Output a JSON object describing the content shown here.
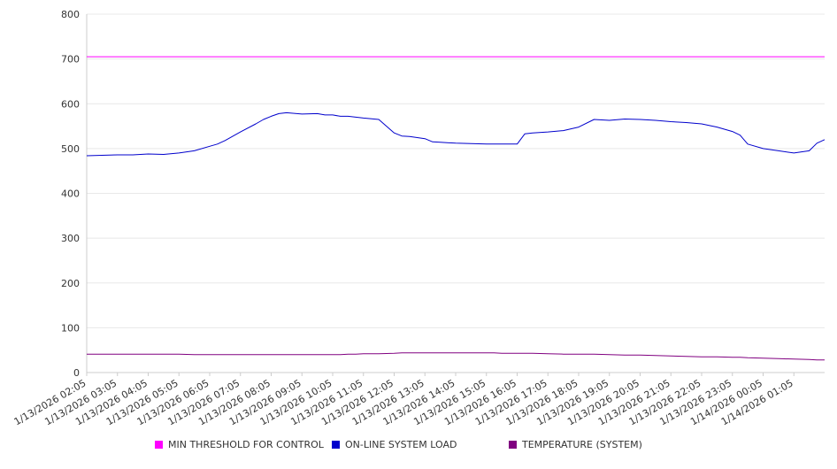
{
  "chart_data": {
    "type": "line",
    "title": "",
    "xlabel": "",
    "ylabel": "",
    "ylim": [
      0,
      800
    ],
    "yticks": [
      0,
      100,
      200,
      300,
      400,
      500,
      600,
      700,
      800
    ],
    "grid": true,
    "legend_position": "bottom",
    "x_tick_labels": [
      "1/13/2026 02:05",
      "1/13/2026 03:05",
      "1/13/2026 04:05",
      "1/13/2026 05:05",
      "1/13/2026 06:05",
      "1/13/2026 07:05",
      "1/13/2026 08:05",
      "1/13/2026 09:05",
      "1/13/2026 10:05",
      "1/13/2026 11:05",
      "1/13/2026 12:05",
      "1/13/2026 13:05",
      "1/13/2026 14:05",
      "1/13/2026 15:05",
      "1/13/2026 16:05",
      "1/13/2026 17:05",
      "1/13/2026 18:05",
      "1/13/2026 19:05",
      "1/13/2026 20:05",
      "1/13/2026 21:05",
      "1/13/2026 22:05",
      "1/13/2026 23:05",
      "1/14/2026 00:05",
      "1/14/2026 01:05"
    ],
    "x_hours": [
      0,
      1,
      1.5,
      2,
      2.5,
      3,
      3.5,
      4,
      4.25,
      4.5,
      5,
      5.5,
      5.75,
      6,
      6.25,
      6.5,
      7,
      7.5,
      7.75,
      8,
      8.25,
      8.5,
      8.75,
      9,
      9.5,
      10,
      10.25,
      10.5,
      11,
      11.25,
      11.5,
      12,
      12.5,
      13,
      13.25,
      13.5,
      14,
      14.25,
      14.5,
      15,
      15.5,
      16,
      16.5,
      17,
      17.5,
      18,
      18.5,
      19,
      19.5,
      20,
      20.5,
      21,
      21.25,
      21.5,
      22,
      22.5,
      23,
      23.5,
      23.75,
      24
    ],
    "series": [
      {
        "name": "MIN THRESHOLD FOR CONTROL",
        "color": "#ff00ff",
        "values": [
          705,
          705,
          705,
          705,
          705,
          705,
          705,
          705,
          705,
          705,
          705,
          705,
          705,
          705,
          705,
          705,
          705,
          705,
          705,
          705,
          705,
          705,
          705,
          705,
          705,
          705,
          705,
          705,
          705,
          705,
          705,
          705,
          705,
          705,
          705,
          705,
          705,
          705,
          705,
          705,
          705,
          705,
          705,
          705,
          705,
          705,
          705,
          705,
          705,
          705,
          705,
          705,
          705,
          705,
          705,
          705,
          705,
          705,
          705,
          705
        ]
      },
      {
        "name": "ON-LINE SYSTEM LOAD",
        "color": "#0000cc",
        "values": [
          484,
          486,
          486,
          488,
          487,
          490,
          495,
          505,
          510,
          518,
          537,
          555,
          565,
          572,
          578,
          580,
          577,
          578,
          575,
          575,
          572,
          572,
          570,
          568,
          565,
          535,
          528,
          527,
          522,
          515,
          514,
          512,
          511,
          510,
          510,
          510,
          510,
          533,
          535,
          537,
          540,
          548,
          565,
          563,
          566,
          565,
          563,
          560,
          558,
          555,
          548,
          538,
          530,
          510,
          500,
          495,
          490,
          495,
          512,
          520
        ]
      },
      {
        "name": "TEMPERATURE (SYSTEM)",
        "color": "#800080",
        "values": [
          41,
          41,
          41,
          41,
          41,
          41,
          40,
          40,
          40,
          40,
          40,
          40,
          40,
          40,
          40,
          40,
          40,
          40,
          40,
          40,
          40,
          41,
          41,
          42,
          42,
          43,
          44,
          44,
          44,
          44,
          44,
          44,
          44,
          44,
          44,
          43,
          43,
          43,
          43,
          42,
          41,
          41,
          41,
          40,
          39,
          39,
          38,
          37,
          36,
          35,
          35,
          34,
          34,
          33,
          32,
          31,
          30,
          29,
          28,
          28
        ]
      }
    ]
  },
  "legend": [
    {
      "label": "MIN THRESHOLD FOR CONTROL",
      "color": "#ff00ff"
    },
    {
      "label": "ON-LINE SYSTEM LOAD",
      "color": "#0000cc"
    },
    {
      "label": "TEMPERATURE (SYSTEM)",
      "color": "#800080"
    }
  ]
}
